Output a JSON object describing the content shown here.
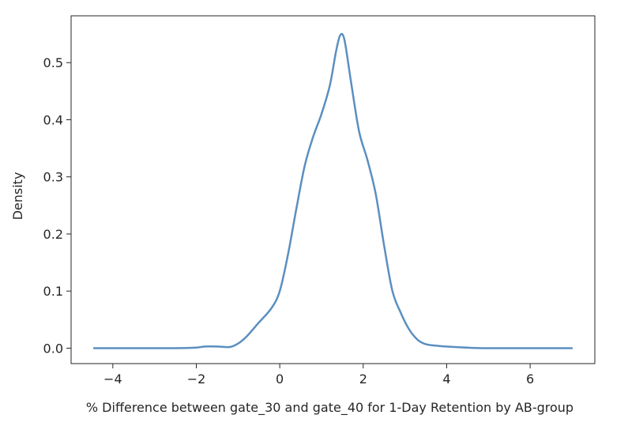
{
  "chart_data": {
    "type": "line",
    "title": "",
    "xlabel": "% Difference between gate_30 and gate_40 for 1-Day Retention by AB-group",
    "ylabel": "Density",
    "xlim": [
      -5.0,
      7.55
    ],
    "ylim": [
      -0.027,
      0.582
    ],
    "x_ticks": [
      -4,
      -2,
      0,
      2,
      4,
      6
    ],
    "x_tick_labels": [
      "−4",
      "−2",
      "0",
      "2",
      "4",
      "6"
    ],
    "y_ticks": [
      0.0,
      0.1,
      0.2,
      0.3,
      0.4,
      0.5
    ],
    "y_tick_labels": [
      "0.0",
      "0.1",
      "0.2",
      "0.3",
      "0.4",
      "0.5"
    ],
    "grid": false,
    "line_color": "#5b8fc0",
    "series": [
      {
        "x": [
          -4.45,
          -3.5,
          -2.5,
          -2.0,
          -1.8,
          -1.5,
          -1.2,
          -1.0,
          -0.8,
          -0.5,
          -0.2,
          0.0,
          0.2,
          0.4,
          0.6,
          0.8,
          1.0,
          1.2,
          1.35,
          1.45,
          1.55,
          1.7,
          1.9,
          2.1,
          2.3,
          2.5,
          2.7,
          2.9,
          3.1,
          3.3,
          3.5,
          3.8,
          4.2,
          4.6,
          5.0,
          6.0,
          7.0
        ],
        "y": [
          0.0,
          0.0,
          0.0,
          0.001,
          0.003,
          0.003,
          0.002,
          0.008,
          0.02,
          0.045,
          0.07,
          0.1,
          0.165,
          0.245,
          0.32,
          0.37,
          0.41,
          0.46,
          0.52,
          0.548,
          0.54,
          0.47,
          0.38,
          0.33,
          0.27,
          0.18,
          0.1,
          0.062,
          0.033,
          0.015,
          0.007,
          0.004,
          0.002,
          0.0005,
          0.0,
          0.0,
          0.0
        ]
      }
    ]
  }
}
